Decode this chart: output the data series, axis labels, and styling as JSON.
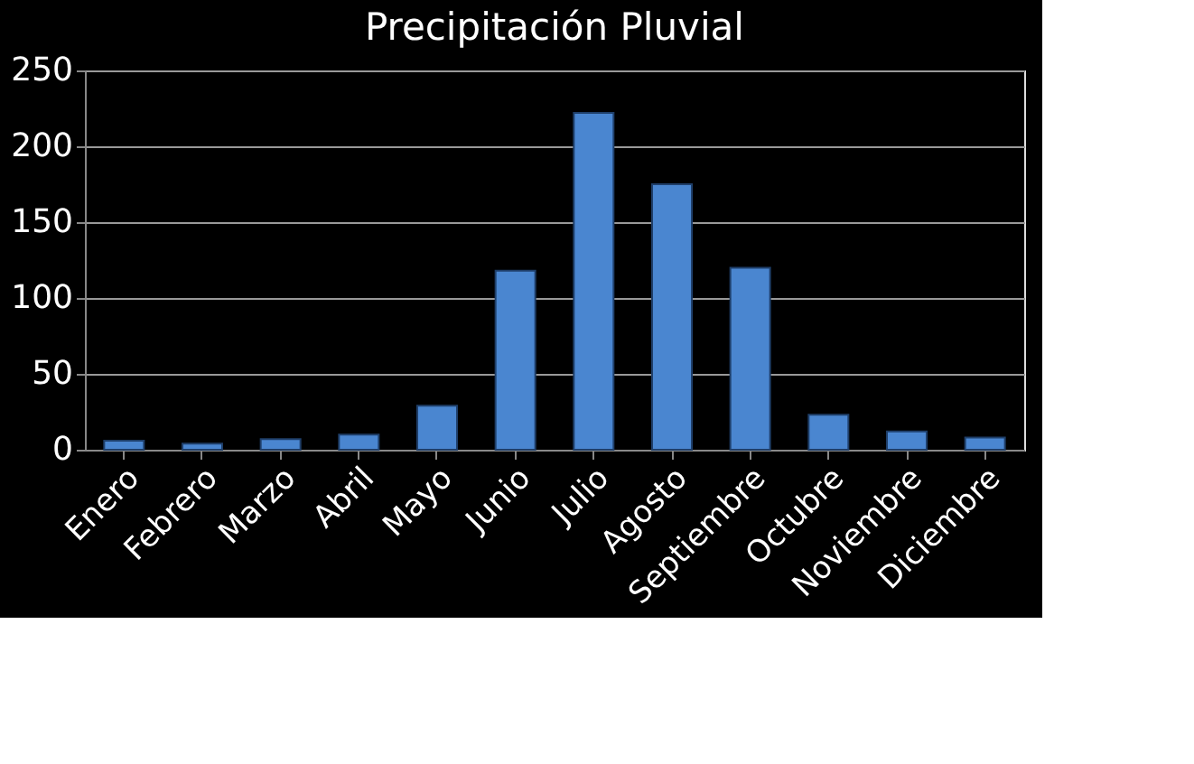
{
  "chart_data": {
    "type": "bar",
    "title": "Precipitación Pluvial",
    "categories": [
      "Enero",
      "Febrero",
      "Marzo",
      "Abril",
      "Mayo",
      "Junio",
      "Julio",
      "Agosto",
      "Septiembre",
      "Octubre",
      "Noviembre",
      "Diciembre"
    ],
    "values": [
      6,
      4,
      7,
      10,
      29,
      118,
      222,
      175,
      120,
      23,
      12,
      8
    ],
    "color": "#4a86d0",
    "ylim": [
      0,
      250
    ],
    "yticks": [
      0,
      50,
      100,
      150,
      200,
      250
    ],
    "grid": "y"
  }
}
